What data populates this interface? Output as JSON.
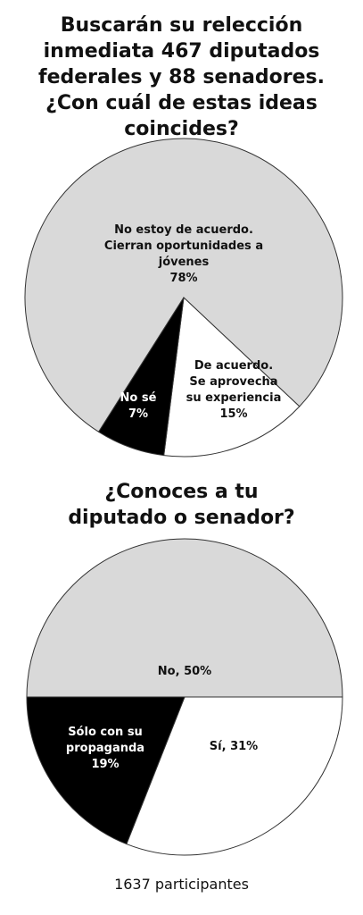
{
  "chart_data": [
    {
      "type": "pie",
      "title": "Buscarán su relección inmediata 467 diputados federales y 88 senadores. ¿Con cuál de estas ideas coincides?",
      "categories": [
        "No estoy de acuerdo. Cierran oportunidades a jóvenes",
        "De acuerdo. Se aprovecha su experiencia",
        "No sé"
      ],
      "values": [
        78,
        15,
        7
      ],
      "value_labels": [
        "78%",
        "15%",
        "7%"
      ],
      "colors": [
        "#d9d9d9",
        "#ffffff",
        "#000000"
      ]
    },
    {
      "type": "pie",
      "title": "¿Conoces a tu diputado o senador?",
      "values": [
        50,
        31,
        19
      ],
      "value_labels": [
        "No, 50%",
        "Sí, 31%",
        "Sólo con su propaganda 19%"
      ],
      "colors": [
        "#d9d9d9",
        "#ffffff",
        "#000000"
      ]
    }
  ],
  "footer": "1637 participantes"
}
